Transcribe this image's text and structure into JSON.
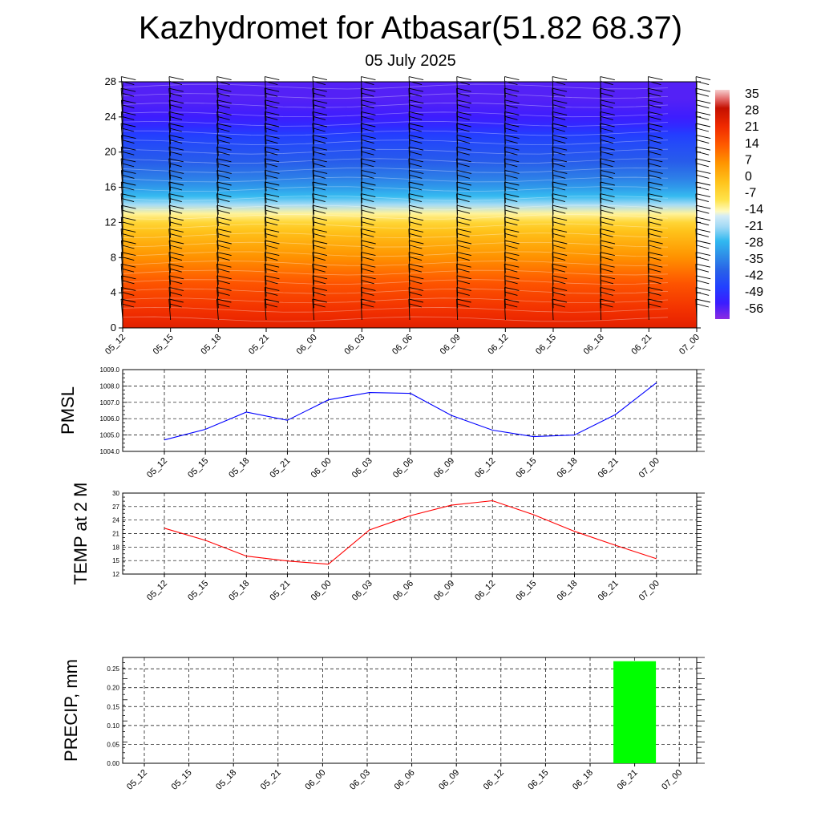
{
  "header": {
    "title": "Kazhydromet for Atbasar(51.82 68.37)",
    "subtitle": "05 July 2025"
  },
  "time_labels": [
    "05_12",
    "05_15",
    "05_18",
    "05_21",
    "06_00",
    "06_03",
    "06_06",
    "06_09",
    "06_12",
    "06_15",
    "06_18",
    "06_21",
    "07_00"
  ],
  "chart_data": [
    {
      "type": "heatmap",
      "title": "",
      "xlabel": "",
      "ylabel": "",
      "x": [
        "05_12",
        "05_15",
        "05_18",
        "05_21",
        "06_00",
        "06_03",
        "06_06",
        "06_09",
        "06_12",
        "06_15",
        "06_18",
        "06_21",
        "07_00"
      ],
      "y_ticks": [
        0,
        4,
        8,
        12,
        16,
        20,
        24,
        28
      ],
      "ylim": [
        0,
        28
      ],
      "colorbar_ticks": [
        35,
        28,
        21,
        14,
        7,
        0,
        -7,
        -14,
        -21,
        -28,
        -35,
        -42,
        -49,
        -56
      ],
      "colorbar_range": [
        -63,
        42
      ],
      "profile": {
        "levels": [
          0,
          1,
          2,
          3,
          4,
          5,
          6,
          7,
          8,
          9,
          10,
          11,
          12,
          13,
          14,
          15,
          16,
          17,
          18,
          19,
          20,
          21,
          22,
          23,
          24,
          25,
          26,
          27,
          28
        ],
        "values": [
          28,
          26,
          24,
          22,
          20,
          18,
          15,
          12,
          9,
          6,
          3,
          0,
          -5,
          -12,
          -20,
          -27,
          -32,
          -36,
          -39,
          -42,
          -44,
          -46,
          -49,
          -53,
          -56,
          -57,
          -58,
          -58,
          -58
        ]
      },
      "wind_barbs": true,
      "grid": false
    },
    {
      "type": "line",
      "title": "",
      "xlabel": "",
      "ylabel": "PMSL",
      "categories": [
        "05_12",
        "05_15",
        "05_18",
        "05_21",
        "06_00",
        "06_03",
        "06_06",
        "06_09",
        "06_12",
        "06_15",
        "06_18",
        "06_21",
        "07_00"
      ],
      "series": [
        {
          "values": [
            1004.7,
            1005.35,
            1006.4,
            1005.9,
            1007.15,
            1007.6,
            1007.55,
            1006.2,
            1005.3,
            1004.9,
            1005.0,
            1006.25,
            1008.2
          ]
        }
      ],
      "ylim": [
        1004.0,
        1009.0
      ],
      "yticks": [
        "1004.0",
        "1005.0",
        "1006.0",
        "1007.0",
        "1008.0",
        "1009.0"
      ],
      "color": "#0000ff",
      "grid": true
    },
    {
      "type": "line",
      "title": "",
      "xlabel": "",
      "ylabel": "TEMP at 2 M",
      "categories": [
        "05_12",
        "05_15",
        "05_18",
        "05_21",
        "06_00",
        "06_03",
        "06_06",
        "06_09",
        "06_12",
        "06_15",
        "06_18",
        "06_21",
        "07_00"
      ],
      "series": [
        {
          "values": [
            22.2,
            19.5,
            16.0,
            14.9,
            14.2,
            21.8,
            25.0,
            27.3,
            28.3,
            25.2,
            21.5,
            18.4,
            15.4
          ]
        }
      ],
      "ylim": [
        12,
        30
      ],
      "yticks": [
        "12",
        "15",
        "18",
        "21",
        "24",
        "27",
        "30"
      ],
      "color": "#ff0000",
      "grid": true
    },
    {
      "type": "bar",
      "title": "",
      "xlabel": "",
      "ylabel": "PRECIP, mm",
      "categories": [
        "05_12",
        "05_15",
        "05_18",
        "05_21",
        "06_00",
        "06_03",
        "06_06",
        "06_09",
        "06_12",
        "06_15",
        "06_18",
        "06_21",
        "07_00"
      ],
      "values": [
        0,
        0,
        0,
        0,
        0,
        0,
        0,
        0,
        0,
        0,
        0,
        0.27,
        0
      ],
      "ylim": [
        0,
        0.28
      ],
      "yticks": [
        "0.00",
        "0.05",
        "0.10",
        "0.15",
        "0.20",
        "0.25"
      ],
      "color": "#00ff00",
      "grid": true
    }
  ]
}
